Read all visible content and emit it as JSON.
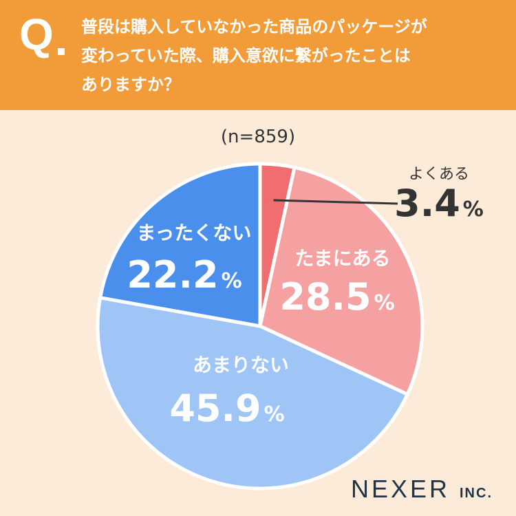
{
  "header": {
    "q_mark": "Q",
    "question_lines": [
      "普段は購入していなかった商品のパッケージが",
      "変わっていた際、購入意欲に繋がったことは",
      "ありますか？"
    ]
  },
  "sample_label": "(n=859)",
  "brand": {
    "name": "NEXER",
    "suffix": "INC."
  },
  "colors": {
    "header": "#f19c38",
    "background": "#fcebd8",
    "often": "#f06d70",
    "sometimes": "#f6a1a1",
    "rarely": "#9fc4f6",
    "never": "#4a8fec"
  },
  "chart_data": {
    "type": "pie",
    "n": 859,
    "start": "12 o'clock",
    "direction": "clockwise",
    "unit": "%",
    "slices": [
      {
        "label": "よくある",
        "value": 3.4,
        "value_text": "3.4",
        "color": "#f06d70"
      },
      {
        "label": "たまにある",
        "value": 28.5,
        "value_text": "28.5",
        "color": "#f6a1a1"
      },
      {
        "label": "あまりない",
        "value": 45.9,
        "value_text": "45.9",
        "color": "#9fc4f6"
      },
      {
        "label": "まったくない",
        "value": 22.2,
        "value_text": "22.2",
        "color": "#4a8fec"
      }
    ]
  }
}
